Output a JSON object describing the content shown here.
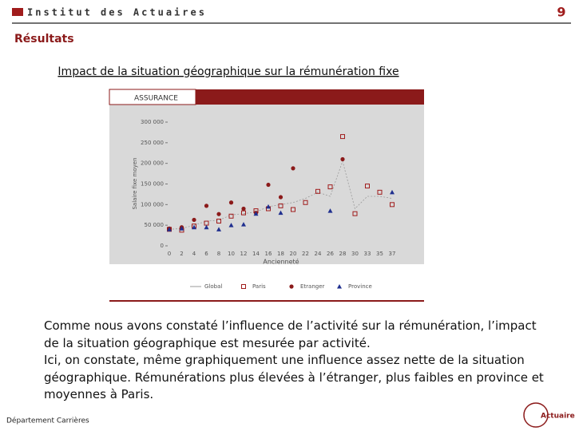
{
  "header": {
    "logo": "Institut des Actuaires",
    "page_number": "9"
  },
  "section": "Résultats",
  "title": "Impact de la situation géographique sur la rémunération fixe",
  "chart_data": {
    "type": "scatter",
    "panel": "ASSURANCE",
    "x_label": "Ancienneté",
    "y_label": "Salaire fixe moyen",
    "categories": [
      "0",
      "2",
      "4",
      "6",
      "8",
      "10",
      "12",
      "14",
      "16",
      "18",
      "20",
      "22",
      "24",
      "26",
      "28",
      "30",
      "33",
      "35",
      "37"
    ],
    "ylim": [
      0,
      300000
    ],
    "yticks": [
      0,
      {
        "value": 50000,
        "label": "50 000"
      },
      {
        "value": 100000,
        "label": "100 000"
      },
      {
        "value": 150000,
        "label": "150 000"
      },
      {
        "value": 200000,
        "label": "200 000"
      },
      {
        "value": 250000,
        "label": "250 000"
      },
      {
        "value": 300000,
        "label": "300 000"
      }
    ],
    "series": [
      {
        "name": "Global",
        "color": "#9a9a9a",
        "marker": "line",
        "values": [
          40000,
          42000,
          50000,
          60000,
          62000,
          75000,
          78000,
          82000,
          95000,
          100000,
          105000,
          115000,
          130000,
          120000,
          205000,
          90000,
          120000,
          120000,
          115000
        ]
      },
      {
        "name": "Paris",
        "color": "#a01c1c",
        "marker": "square",
        "values": [
          40000,
          38000,
          48000,
          55000,
          60000,
          72000,
          80000,
          85000,
          90000,
          97000,
          88000,
          105000,
          132000,
          143000,
          265000,
          78000,
          145000,
          130000,
          100000
        ]
      },
      {
        "name": "Etranger",
        "color": "#8b1a1a",
        "marker": "circle",
        "values": [
          42000,
          45000,
          63000,
          97000,
          77000,
          105000,
          90000,
          80000,
          148000,
          118000,
          188000,
          null,
          null,
          null,
          210000,
          null,
          null,
          null,
          null
        ]
      },
      {
        "name": "Province",
        "color": "#1f2f8f",
        "marker": "triangle",
        "values": [
          40000,
          42000,
          45000,
          45000,
          40000,
          50000,
          52000,
          78000,
          95000,
          80000,
          null,
          null,
          null,
          85000,
          null,
          null,
          null,
          null,
          130000
        ]
      }
    ]
  },
  "body": [
    "Comme nous avons constaté l’influence de l’activité sur la rémunération, l’impact de la situation géographique est mesurée par activité.",
    "Ici, on constate, même graphiquement une influence assez nette de la situation géographique. Rémunérations plus élevées à l’étranger, plus faibles en province et moyennes à Paris."
  ],
  "footer": {
    "department": "Département Carrières",
    "logo": "Actuaires"
  }
}
